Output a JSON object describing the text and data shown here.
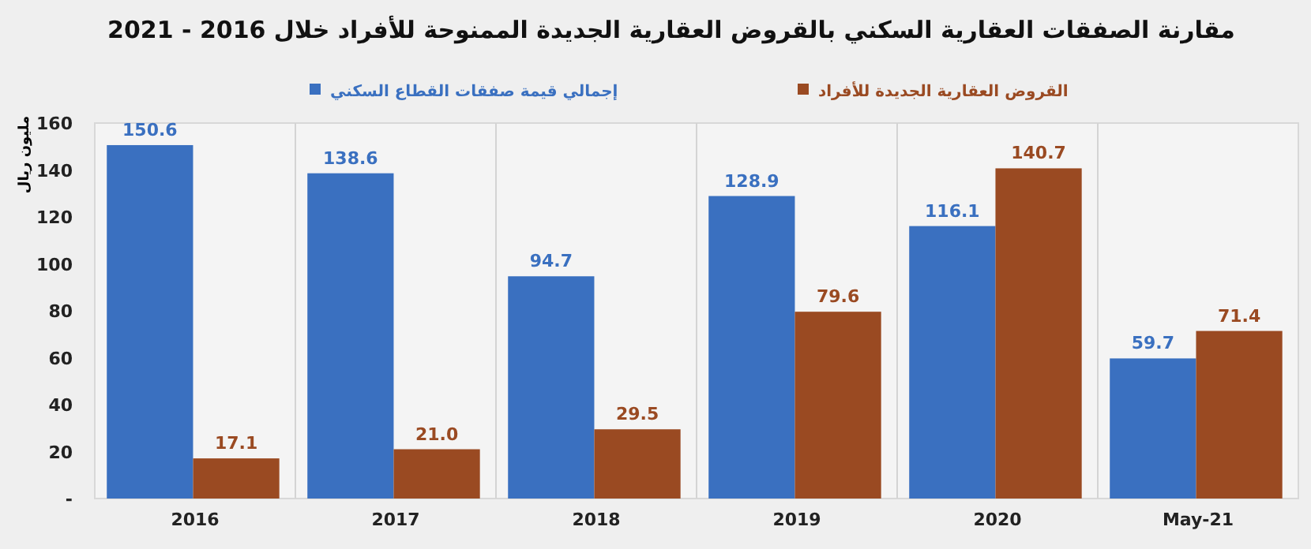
{
  "chart_data": {
    "type": "bar",
    "title": "مقارنة الصفقات العقارية السكني بالقروض العقارية الجديدة الممنوحة للأفراد خلال 2016 - 2021",
    "ylabel": "مليون ريال",
    "categories": [
      "2016",
      "2017",
      "2018",
      "2019",
      "2020",
      "May-21"
    ],
    "series": [
      {
        "name": "إجمالي قيمة صفقات القطاع السكني",
        "color": "#3a70c0",
        "values": [
          150.6,
          138.6,
          94.7,
          128.9,
          116.1,
          59.7
        ],
        "value_labels": [
          "150.6",
          "138.6",
          "94.7",
          "128.9",
          "116.1",
          "59.7"
        ]
      },
      {
        "name": "القروض العقارية الجديدة للأفراد",
        "color": "#9a4a22",
        "values": [
          17.1,
          21.0,
          29.5,
          79.6,
          140.7,
          71.4
        ],
        "value_labels": [
          "17.1",
          "21.0",
          "29.5",
          "79.6",
          "140.7",
          "71.4"
        ]
      }
    ],
    "ylim": [
      0,
      160
    ],
    "yticks": [
      {
        "value": 0,
        "label": "-"
      },
      20,
      40,
      60,
      80,
      100,
      120,
      140,
      160
    ],
    "grid": "x",
    "legend": "top"
  }
}
